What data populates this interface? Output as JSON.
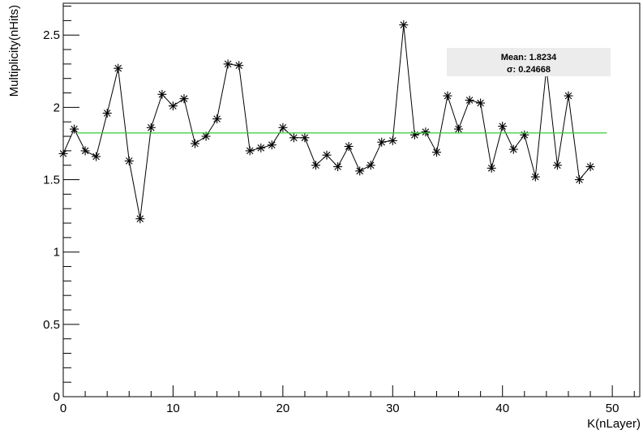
{
  "chart_data": {
    "type": "line",
    "xlabel": "K(nLayer)",
    "ylabel": "Multiplicity(nHits)",
    "xlim": [
      0,
      52.5
    ],
    "ylim": [
      0,
      2.72
    ],
    "x_ticks": [
      0,
      10,
      20,
      30,
      40,
      50
    ],
    "y_ticks": [
      0,
      0.5,
      1,
      1.5,
      2,
      2.5
    ],
    "x_tick_labels": [
      "0",
      "10",
      "20",
      "30",
      "40",
      "50"
    ],
    "y_tick_labels": [
      "0",
      "0.5",
      "1",
      "1.5",
      "2",
      "2.5"
    ],
    "grid": false,
    "series": [
      {
        "x": [
          0,
          1,
          2,
          3,
          4,
          5,
          6,
          7,
          8,
          9,
          10,
          11,
          12,
          13,
          14,
          15,
          16,
          17,
          18,
          19,
          20,
          21,
          22,
          23,
          24,
          25,
          26,
          27,
          28,
          29,
          30,
          31,
          32,
          33,
          34,
          35,
          36,
          37,
          38,
          39,
          40,
          41,
          42,
          43,
          44,
          45,
          46,
          47,
          48
        ],
        "values": [
          1.68,
          1.85,
          1.7,
          1.66,
          1.96,
          2.27,
          1.63,
          1.23,
          1.86,
          2.09,
          2.01,
          2.06,
          1.75,
          1.8,
          1.92,
          2.3,
          2.29,
          1.7,
          1.72,
          1.74,
          1.86,
          1.79,
          1.79,
          1.6,
          1.67,
          1.59,
          1.73,
          1.56,
          1.6,
          1.76,
          1.77,
          2.57,
          1.81,
          1.83,
          1.69,
          2.08,
          1.85,
          2.05,
          2.03,
          1.58,
          1.87,
          1.71,
          1.81,
          1.52,
          2.27,
          1.6,
          2.08,
          1.5,
          1.59
        ],
        "marker": "asterisk",
        "color": "#000000"
      }
    ],
    "mean_line": {
      "value": 1.8234,
      "color": "#33cc33"
    },
    "stats_box": {
      "mean_text": "Mean: 1.8234",
      "sigma_text": "σ: 0.24668",
      "background": "#ececec"
    }
  }
}
